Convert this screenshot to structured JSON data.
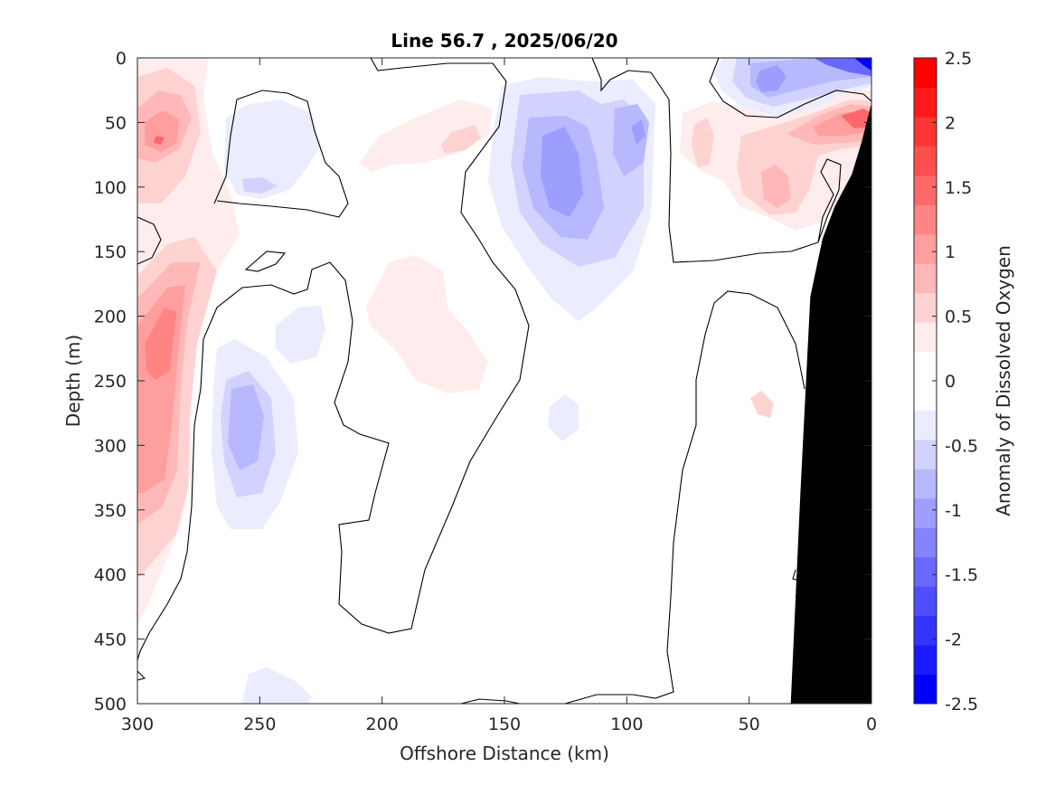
{
  "chart_data": {
    "type": "heatmap",
    "subtype": "filled-contour section",
    "title": "Line 56.7 , 2025/06/20",
    "xlabel": "Offshore Distance (km)",
    "ylabel": "Depth (m)",
    "xlim": [
      300,
      0
    ],
    "x_reversed": true,
    "ylim": [
      0,
      500
    ],
    "y_reversed": true,
    "xticks": [
      300,
      250,
      200,
      150,
      100,
      50,
      0
    ],
    "yticks": [
      0,
      50,
      100,
      150,
      200,
      250,
      300,
      350,
      400,
      450,
      500
    ],
    "grid": false,
    "colorbar": {
      "label": "Anomaly of Dissolved Oxygen",
      "range": [
        -2.5,
        2.5
      ],
      "ticks": [
        2.5,
        2,
        1.5,
        1,
        0.5,
        0,
        -0.5,
        -1,
        -1.5,
        -2,
        -2.5
      ],
      "tick_labels": [
        "2.5",
        "2",
        "1.5",
        "1",
        "0.5",
        "0",
        "-0.5",
        "-1",
        "-1.5",
        "-2",
        "-2.5"
      ],
      "levels": [
        -2.5,
        -2.25,
        -2,
        -1.75,
        -1.5,
        -1.25,
        -1,
        -0.75,
        -0.5,
        -0.25,
        0.25,
        0.5,
        0.75,
        1,
        1.25,
        1.5,
        1.75,
        2,
        2.25,
        2.5
      ],
      "colors": [
        "#0000ff",
        "#1a1aff",
        "#3434ff",
        "#4e4eff",
        "#6868ff",
        "#8484ff",
        "#9e9eff",
        "#b8b8ff",
        "#d2d2ff",
        "#ececff",
        "#ffffff",
        "#ffffff",
        "#ffecec",
        "#ffd2d2",
        "#ffb8b8",
        "#ff9e9e",
        "#ff8484",
        "#ff6868",
        "#ff4e4e",
        "#ff3434",
        "#ff1a1a",
        "#ff0000"
      ]
    },
    "anomaly_features": [
      {
        "x": 290,
        "y": 70,
        "value": 1.0
      },
      {
        "x": 290,
        "y": 220,
        "value": 1.4
      },
      {
        "x": 290,
        "y": 320,
        "value": 0.9
      },
      {
        "x": 250,
        "y": 285,
        "value": -0.8
      },
      {
        "x": 250,
        "y": 80,
        "value": -0.5
      },
      {
        "x": 225,
        "y": 215,
        "value": -0.4
      },
      {
        "x": 180,
        "y": 210,
        "value": 0.5
      },
      {
        "x": 170,
        "y": 65,
        "value": 0.7
      },
      {
        "x": 128,
        "y": 100,
        "value": -1.0
      },
      {
        "x": 98,
        "y": 70,
        "value": -0.9
      },
      {
        "x": 125,
        "y": 280,
        "value": -0.3
      },
      {
        "x": 45,
        "y": 20,
        "value": -1.2
      },
      {
        "x": 5,
        "y": 5,
        "value": -2.0
      },
      {
        "x": 10,
        "y": 45,
        "value": 1.5
      },
      {
        "x": 40,
        "y": 100,
        "value": 1.0
      },
      {
        "x": 70,
        "y": 70,
        "value": 0.6
      },
      {
        "x": 42,
        "y": 265,
        "value": 0.3
      }
    ],
    "bathymetry": [
      {
        "x": 0,
        "depth": 35
      },
      {
        "x": 4,
        "depth": 65
      },
      {
        "x": 8,
        "depth": 90
      },
      {
        "x": 15,
        "depth": 115
      },
      {
        "x": 20,
        "depth": 140
      },
      {
        "x": 25,
        "depth": 185
      },
      {
        "x": 29,
        "depth": 335
      },
      {
        "x": 33,
        "depth": 500
      }
    ]
  }
}
